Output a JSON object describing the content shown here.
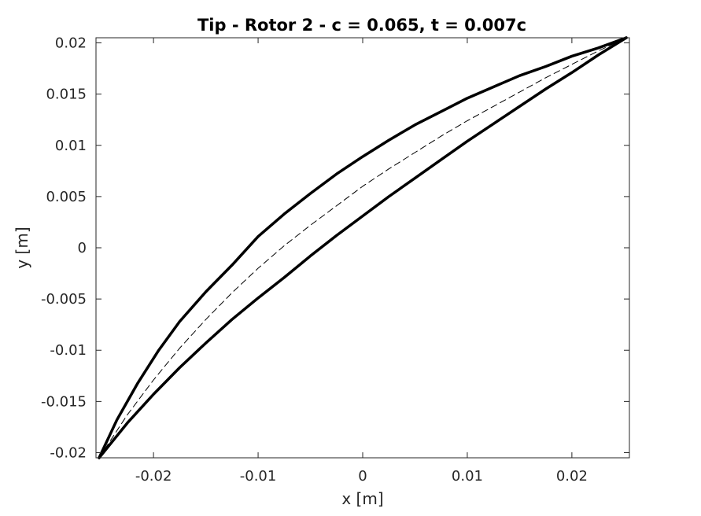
{
  "chart_data": {
    "type": "line",
    "title": "Tip - Rotor 2  - c = 0.065, t = 0.007c",
    "xlabel": "x [m]",
    "ylabel": "y [m]",
    "xlim": [
      -0.0255,
      0.0255
    ],
    "ylim": [
      -0.0205,
      0.0205
    ],
    "grid": false,
    "legend": "none",
    "xticks": [
      -0.02,
      -0.01,
      0,
      0.01,
      0.02
    ],
    "xtick_labels": [
      "-0.02",
      "-0.01",
      "0",
      "0.01",
      "0.02"
    ],
    "yticks": [
      -0.02,
      -0.015,
      -0.01,
      -0.005,
      0,
      0.005,
      0.01,
      0.015,
      0.02
    ],
    "ytick_labels": [
      "-0.02",
      "-0.015",
      "-0.01",
      "-0.005",
      "0",
      "0.005",
      "0.01",
      "0.015",
      "0.02"
    ],
    "series": [
      {
        "style": "solid-thick",
        "color": "#000000",
        "x": [
          -0.0252,
          -0.0235,
          -0.0215,
          -0.0195,
          -0.0175,
          -0.015,
          -0.0125,
          -0.01,
          -0.0075,
          -0.005,
          -0.0025,
          0,
          0.0025,
          0.005,
          0.0075,
          0.01,
          0.0125,
          0.015,
          0.0175,
          0.02,
          0.0225,
          0.0252
        ],
        "y": [
          -0.0205,
          -0.0168,
          -0.0132,
          -0.01,
          -0.0072,
          -0.0043,
          -0.0017,
          0.0011,
          0.0033,
          0.0053,
          0.0072,
          0.0089,
          0.0105,
          0.012,
          0.0133,
          0.0146,
          0.0157,
          0.0168,
          0.0177,
          0.0187,
          0.0195,
          0.0205
        ]
      },
      {
        "style": "solid-thick",
        "color": "#000000",
        "x": [
          -0.0252,
          -0.0225,
          -0.02,
          -0.0175,
          -0.015,
          -0.0125,
          -0.01,
          -0.0075,
          -0.005,
          -0.0025,
          0,
          0.0025,
          0.005,
          0.0075,
          0.01,
          0.0125,
          0.015,
          0.0175,
          0.02,
          0.0225,
          0.0252
        ],
        "y": [
          -0.0205,
          -0.0171,
          -0.0143,
          -0.0117,
          -0.0093,
          -0.007,
          -0.0049,
          -0.0029,
          -0.0008,
          0.0012,
          0.0031,
          0.005,
          0.0068,
          0.0086,
          0.0104,
          0.0121,
          0.0138,
          0.0155,
          0.0171,
          0.0188,
          0.0205
        ]
      },
      {
        "style": "dashed-thin",
        "color": "#000000",
        "x": [
          -0.0252,
          -0.0225,
          -0.02,
          -0.0175,
          -0.015,
          -0.0125,
          -0.01,
          -0.0075,
          -0.005,
          -0.0025,
          0,
          0.0025,
          0.005,
          0.0075,
          0.01,
          0.0125,
          0.015,
          0.0175,
          0.02,
          0.0225,
          0.0252
        ],
        "y": [
          -0.0205,
          -0.0163,
          -0.0129,
          -0.0098,
          -0.007,
          -0.0044,
          -0.002,
          0.0002,
          0.0022,
          0.0041,
          0.006,
          0.0077,
          0.0093,
          0.0109,
          0.0124,
          0.0138,
          0.0152,
          0.0166,
          0.0179,
          0.0192,
          0.0205
        ]
      }
    ]
  }
}
